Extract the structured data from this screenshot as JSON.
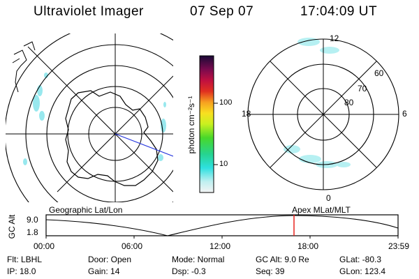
{
  "header": {
    "title": "Ultraviolet Imager",
    "date": "07 Sep 07",
    "time": "17:04:09 UT"
  },
  "panels": {
    "left_label": "Geographic Lat/Lon",
    "right_label": "Apex MLat/MLT",
    "mlt_labels": {
      "top": "12",
      "bottom": "0",
      "left": "18",
      "right": "6"
    },
    "mlat_labels": [
      "60",
      "70",
      "80"
    ]
  },
  "colorbar": {
    "unit_label": "photon cm⁻²s⁻¹",
    "ticks": [
      "100",
      "10"
    ]
  },
  "timeline": {
    "y_title": "GC Alt",
    "y_ticks": [
      "9.0",
      "1.8"
    ],
    "x_ticks": [
      "00:00",
      "06:00",
      "12:00",
      "18:00",
      "23:59"
    ],
    "marker_color": "#e8231e"
  },
  "info": {
    "flt": "Flt: LBHL",
    "ip": "IP: 18.0",
    "door": "Door: Open",
    "gain": "Gain: 14",
    "mode": "Mode: Normal",
    "dsp": "Dsp:   -0.3",
    "gc_alt": "GC Alt: 9.0 Re",
    "seq": "Seq: 39",
    "glat": "GLat: -80.3",
    "glon": "GLon: 123.4"
  }
}
